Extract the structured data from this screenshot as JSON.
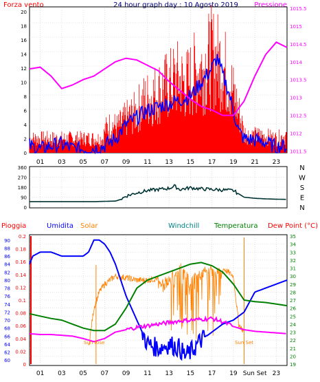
{
  "header": {
    "left_label": "Forza vento",
    "title": "24 hour graph day : 10 Agosto 2019",
    "right_label": "Pressione"
  },
  "colors": {
    "wind": "#ff0000",
    "wind_avg": "#0000ff",
    "pressure": "#ff00ff",
    "direction": "#003333",
    "rain": "#ff0000",
    "humidity": "#0000ff",
    "solar": "#ff8000",
    "windchill": "#008080",
    "temperature": "#008000",
    "dewpoint": "#ff00ff",
    "grid": "#cccccc",
    "sun_line": "#ff8000"
  },
  "bottom_header": {
    "rain": "Pioggia",
    "humidity": "Umidita",
    "solar": "Solar",
    "windchill": "Windchill",
    "temperature": "Temperatura",
    "dewpoint": "Dew Point (°C)"
  },
  "sun_labels": {
    "rise": "Sun Rise",
    "set": "Sun Set",
    "set_axis": "Sun Set"
  },
  "compass": [
    "N",
    "W",
    "S",
    "E",
    "N"
  ],
  "chart_data": [
    {
      "type": "line",
      "title": "24 hour graph day : 10 Agosto 2019",
      "x_ticks": [
        "01",
        "03",
        "05",
        "07",
        "09",
        "11",
        "13",
        "15",
        "17",
        "19",
        "21",
        "23"
      ],
      "xlim": [
        0,
        24
      ],
      "y_left": {
        "label": "Forza vento",
        "ticks": [
          "0",
          "2",
          "4",
          "6",
          "8",
          "10",
          "12",
          "14",
          "16",
          "18",
          "20"
        ],
        "ylim": [
          0,
          20.5
        ]
      },
      "y_right": {
        "label": "Pressione",
        "ticks": [
          "1011.5",
          "1012",
          "1012.5",
          "1013",
          "1013.5",
          "1014",
          "1014.5",
          "1015",
          "1015.5"
        ],
        "ylim": [
          1011.45,
          1015.5
        ]
      },
      "series": [
        {
          "name": "Forza vento",
          "axis": "left",
          "x": [
            0,
            6.9,
            7.0,
            7.6,
            8.2,
            9.0,
            9.8,
            10.6,
            11.4,
            12.2,
            13.0,
            13.8,
            14.6,
            15.4,
            16.2,
            17.0,
            17.8,
            18.6,
            19.4,
            20.0,
            20.6,
            21.4,
            22.2,
            23.0,
            23.8
          ],
          "y": [
            2.5,
            2.5,
            4,
            5,
            4.5,
            6,
            7,
            9,
            10,
            11,
            12,
            13,
            12,
            14,
            15,
            17,
            16,
            13,
            8,
            3.5,
            3,
            3,
            2.8,
            2.5,
            3
          ]
        },
        {
          "name": "Media vento",
          "axis": "left",
          "x": [
            0,
            1,
            2,
            3,
            4,
            5,
            6,
            7,
            8,
            9,
            10,
            11,
            12,
            13,
            14,
            15,
            16,
            17,
            17.5,
            18,
            18.5,
            19,
            19.5,
            20,
            21,
            22,
            23,
            24
          ],
          "y": [
            1,
            0.5,
            1,
            1.2,
            0.6,
            0.5,
            0.6,
            1,
            2,
            4,
            5,
            6,
            6.5,
            7,
            7.5,
            8,
            10,
            12,
            13.5,
            11,
            9,
            6,
            3,
            2,
            1.8,
            1.5,
            0.8,
            1
          ]
        },
        {
          "name": "Pressione",
          "axis": "right",
          "x": [
            0,
            1,
            2,
            3,
            4,
            5,
            6,
            7,
            8,
            9,
            10,
            11,
            12,
            13,
            14,
            15,
            16,
            17,
            18,
            19,
            20,
            21,
            22,
            23,
            24
          ],
          "y": [
            1013.8,
            1013.85,
            1013.6,
            1013.25,
            1013.35,
            1013.5,
            1013.6,
            1013.8,
            1014.0,
            1014.1,
            1014.05,
            1013.9,
            1013.75,
            1013.45,
            1013.2,
            1012.95,
            1012.75,
            1012.65,
            1012.5,
            1012.5,
            1012.9,
            1013.6,
            1014.2,
            1014.55,
            1014.4
          ]
        }
      ]
    },
    {
      "type": "line",
      "x_ticks": [
        "01",
        "03",
        "05",
        "07",
        "09",
        "11",
        "13",
        "15",
        "17",
        "19",
        "21",
        "23"
      ],
      "xlim": [
        0,
        24
      ],
      "y_left": {
        "ticks": [
          "0",
          "90",
          "180",
          "270",
          "360"
        ],
        "ylim": [
          0,
          360
        ]
      },
      "series": [
        {
          "name": "Direzione vento",
          "x": [
            0,
            2,
            4,
            6,
            8,
            8.5,
            9,
            10,
            11,
            12,
            13,
            13.5,
            14,
            15,
            16,
            17,
            18,
            19,
            19.5,
            20,
            21,
            22,
            23,
            24
          ],
          "y": [
            50,
            50,
            50,
            50,
            55,
            70,
            100,
            130,
            150,
            160,
            170,
            190,
            160,
            175,
            165,
            160,
            155,
            150,
            120,
            90,
            80,
            75,
            72,
            70
          ]
        }
      ]
    },
    {
      "type": "line",
      "x_ticks": [
        "01",
        "03",
        "05",
        "07",
        "09",
        "11",
        "13",
        "15",
        "17",
        "19",
        "Sun Set",
        "23"
      ],
      "xlim": [
        0,
        24
      ],
      "y_humidity": {
        "label": "Umidita",
        "ticks": [
          "60",
          "62",
          "64",
          "66",
          "68",
          "70",
          "72",
          "74",
          "76",
          "78",
          "80",
          "82",
          "84",
          "86",
          "88",
          "90"
        ],
        "ylim": [
          59,
          91
        ]
      },
      "y_rain": {
        "label": "Pioggia",
        "ticks": [
          "0",
          "0.02",
          "0.04",
          "0.06",
          "0.08",
          "0.1",
          "0.12",
          "0.14",
          "0.16",
          "0.18",
          "0.2"
        ],
        "ylim": [
          0,
          0.2
        ]
      },
      "y_temp": {
        "label": "Temperatura",
        "ticks": [
          "19",
          "20",
          "21",
          "22",
          "23",
          "24",
          "25",
          "26",
          "27",
          "28",
          "29",
          "30",
          "31",
          "32",
          "33",
          "34",
          "35"
        ],
        "ylim": [
          19,
          35
        ]
      },
      "series": [
        {
          "name": "Umidita",
          "axis": "humidity",
          "x": [
            0,
            0.3,
            1,
            2,
            3,
            4,
            5,
            5.5,
            6,
            6.5,
            7,
            7.5,
            8,
            9,
            10,
            11,
            12,
            13,
            14,
            14.5,
            15,
            16,
            17,
            18,
            19,
            20,
            21,
            22,
            23,
            24
          ],
          "y": [
            84,
            86,
            87,
            87,
            86,
            86,
            86,
            87,
            90,
            90,
            89,
            87,
            84,
            76,
            70,
            64,
            63,
            64,
            63,
            61,
            62,
            65,
            67,
            69,
            70,
            72,
            77,
            78,
            79,
            80
          ]
        },
        {
          "name": "Pioggia",
          "axis": "rain",
          "x": [
            0,
            24
          ],
          "y": [
            0,
            0
          ]
        },
        {
          "name": "Solar",
          "axis": "temp",
          "x": [
            5.5,
            6,
            6.5,
            7,
            7.5,
            8,
            9,
            10,
            11,
            12,
            13,
            14,
            15,
            16,
            17,
            18,
            19,
            19.5,
            20
          ],
          "y": [
            21,
            26,
            28,
            29,
            29.5,
            30,
            29.8,
            29.5,
            29.5,
            29.7,
            30,
            32,
            30,
            31,
            31.5,
            31,
            30,
            24,
            23
          ]
        },
        {
          "name": "Temperatura",
          "axis": "temp",
          "x": [
            0,
            1,
            2,
            3,
            4,
            5,
            6,
            7,
            8,
            9,
            10,
            11,
            12,
            13,
            14,
            15,
            16,
            17,
            18,
            19,
            20,
            21,
            22,
            23,
            24
          ],
          "y": [
            25.3,
            25,
            24.7,
            24.5,
            24,
            23.5,
            23.2,
            23.2,
            24,
            26,
            28.5,
            29.5,
            30,
            30.5,
            31,
            31.5,
            31.7,
            31.3,
            30.5,
            29,
            27,
            26.8,
            26.7,
            26.5,
            26.3
          ]
        },
        {
          "name": "Dew Point",
          "axis": "temp",
          "x": [
            0,
            1,
            2,
            3,
            4,
            5,
            6,
            7,
            8,
            9,
            10,
            11,
            12,
            13,
            14,
            15,
            16,
            17,
            18,
            19,
            20,
            21,
            22,
            23,
            24
          ],
          "y": [
            22.8,
            22.7,
            22.7,
            22.6,
            22.5,
            22.2,
            21.8,
            22.2,
            23.0,
            23.3,
            23.6,
            23.8,
            24,
            24.2,
            24.4,
            24.5,
            24.6,
            24.7,
            24.3,
            23.7,
            23.3,
            23.1,
            23.0,
            22.9,
            22.8
          ]
        }
      ],
      "sun_rise_x": 6.2,
      "sun_set_x": 20.0
    }
  ]
}
